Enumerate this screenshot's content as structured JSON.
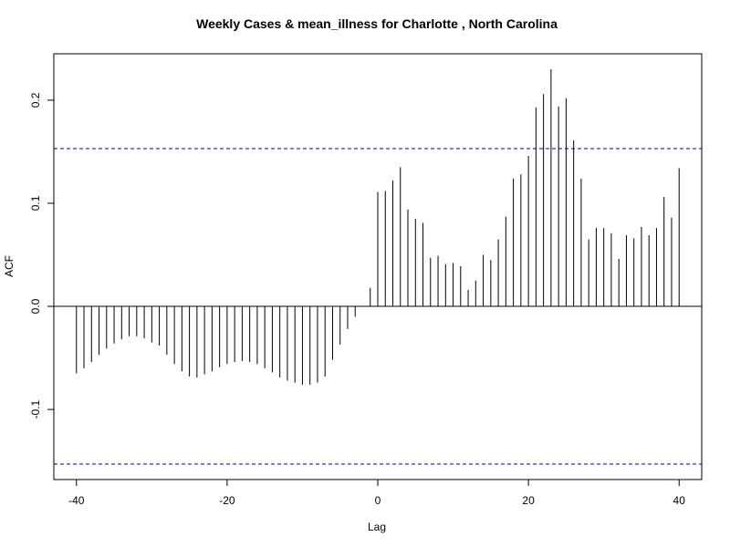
{
  "chart_data": {
    "type": "bar",
    "title": "Weekly Cases & mean_illness for Charlotte , North Carolina",
    "xlabel": "Lag",
    "ylabel": "ACF",
    "xlim": [
      -43,
      43
    ],
    "ylim": [
      -0.168,
      0.245
    ],
    "x_ticks": [
      -40,
      -20,
      0,
      20,
      40
    ],
    "x_tick_labels": [
      "-40",
      "-20",
      "0",
      "20",
      "40"
    ],
    "y_ticks": [
      -0.1,
      0.0,
      0.1,
      0.2
    ],
    "y_tick_labels": [
      "-0.1",
      "0.0",
      "0.1",
      "0.2"
    ],
    "confidence_bounds": [
      0.153,
      -0.153
    ],
    "grid": false,
    "legend": "none",
    "colors": {
      "bars": "#000000",
      "confidence": "#00008B",
      "zero_line": "#000000"
    },
    "lags": [
      -40,
      -39,
      -38,
      -37,
      -36,
      -35,
      -34,
      -33,
      -32,
      -31,
      -30,
      -29,
      -28,
      -27,
      -26,
      -25,
      -24,
      -23,
      -22,
      -21,
      -20,
      -19,
      -18,
      -17,
      -16,
      -15,
      -14,
      -13,
      -12,
      -11,
      -10,
      -9,
      -8,
      -7,
      -6,
      -5,
      -4,
      -3,
      -2,
      -1,
      0,
      1,
      2,
      3,
      4,
      5,
      6,
      7,
      8,
      9,
      10,
      11,
      12,
      13,
      14,
      15,
      16,
      17,
      18,
      19,
      20,
      21,
      22,
      23,
      24,
      25,
      26,
      27,
      28,
      29,
      30,
      31,
      32,
      33,
      34,
      35,
      36,
      37,
      38,
      39,
      40
    ],
    "values": [
      -0.065,
      -0.06,
      -0.054,
      -0.047,
      -0.041,
      -0.036,
      -0.032,
      -0.029,
      -0.029,
      -0.031,
      -0.035,
      -0.038,
      -0.047,
      -0.056,
      -0.063,
      -0.068,
      -0.069,
      -0.066,
      -0.063,
      -0.059,
      -0.056,
      -0.054,
      -0.053,
      -0.054,
      -0.056,
      -0.06,
      -0.064,
      -0.069,
      -0.072,
      -0.074,
      -0.076,
      -0.076,
      -0.074,
      -0.068,
      -0.052,
      -0.037,
      -0.022,
      -0.01,
      0.0,
      0.018,
      0.111,
      0.112,
      0.122,
      0.135,
      0.094,
      0.085,
      0.081,
      0.047,
      0.049,
      0.041,
      0.042,
      0.039,
      0.016,
      0.025,
      0.05,
      0.045,
      0.065,
      0.087,
      0.124,
      0.128,
      0.146,
      0.193,
      0.206,
      0.23,
      0.194,
      0.202,
      0.161,
      0.124,
      0.065,
      0.076,
      0.076,
      0.071,
      0.046,
      0.069,
      0.066,
      0.077,
      0.069,
      0.076,
      0.106,
      0.086,
      0.134
    ]
  }
}
